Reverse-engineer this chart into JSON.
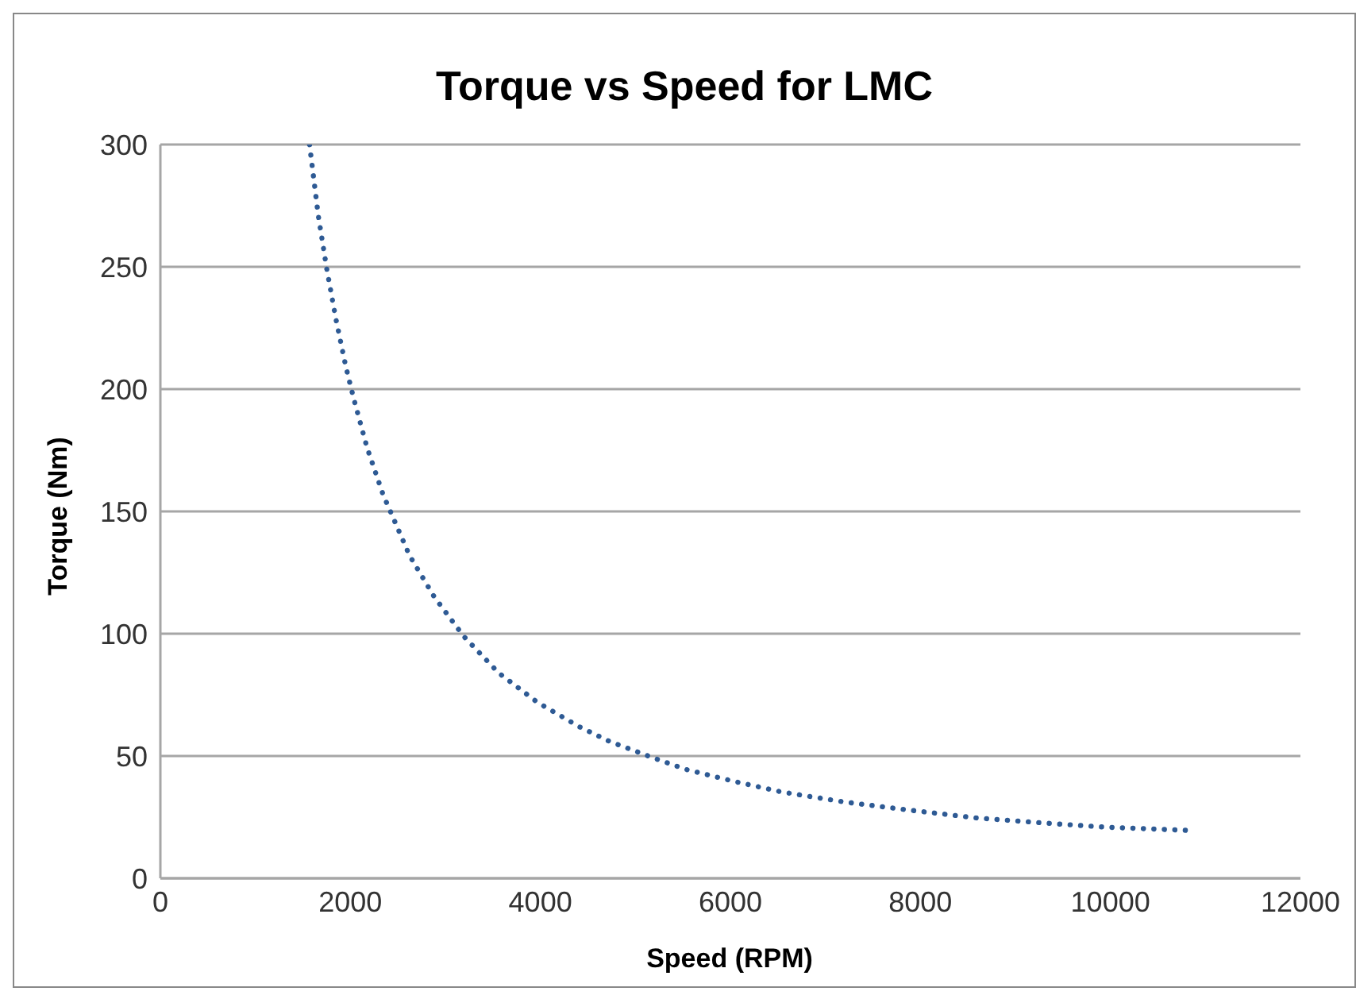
{
  "chart_data": {
    "type": "line",
    "title": "Torque vs Speed for LMC",
    "xlabel": "Speed (RPM)",
    "ylabel": "Torque (Nm)",
    "xlim": [
      0,
      12000
    ],
    "xticks": [
      0,
      2000,
      4000,
      6000,
      8000,
      10000,
      12000
    ],
    "ylim": [
      0,
      300
    ],
    "yticks": [
      0,
      50,
      100,
      150,
      200,
      250,
      300
    ],
    "grid": "y",
    "marker": "none",
    "line_style": "dotted",
    "series": [
      {
        "color": "#2e5a94",
        "x": [
          1570,
          1662,
          1752,
          1846,
          1953,
          2036,
          2176,
          2343,
          2410,
          2622,
          2884,
          3191,
          3560,
          3967,
          4407,
          4725,
          5205,
          5533,
          6030,
          6539,
          7218,
          7900,
          8586,
          9266,
          9946,
          10812
        ],
        "values": [
          300,
          271,
          249,
          229,
          209,
          196,
          176,
          157,
          151,
          132,
          115,
          99,
          84,
          72,
          62,
          56,
          49,
          44.5,
          39.7,
          35.3,
          31.1,
          27.8,
          24.7,
          22.7,
          20.9,
          19.6
        ]
      }
    ]
  }
}
